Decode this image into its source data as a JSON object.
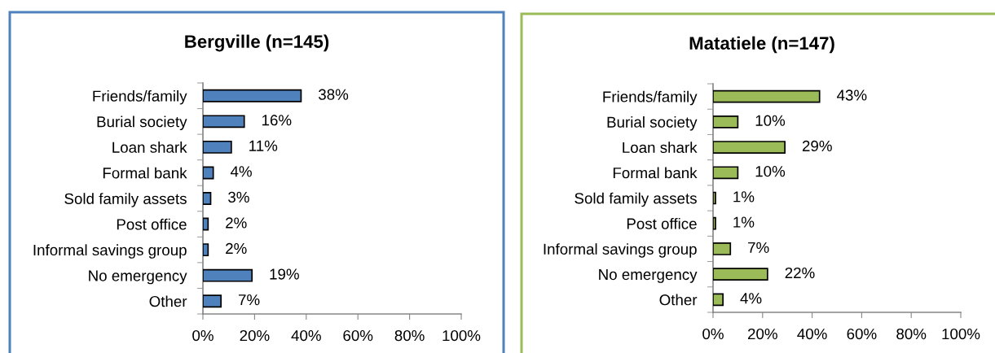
{
  "chart_data": [
    {
      "type": "bar",
      "orientation": "horizontal",
      "title": "Bergville (n=145)",
      "categories": [
        "Friends/family",
        "Burial society",
        "Loan shark",
        "Formal bank",
        "Sold family assets",
        "Post office",
        "Informal savings group",
        "No emergency",
        "Other"
      ],
      "values": [
        38,
        16,
        11,
        4,
        3,
        2,
        2,
        19,
        7
      ],
      "value_labels": [
        "38%",
        "16%",
        "11%",
        "4%",
        "3%",
        "2%",
        "2%",
        "19%",
        "7%"
      ],
      "color": "#4f81bd",
      "xlim": [
        0,
        100
      ],
      "xticks": [
        {
          "value": 0,
          "label": "0%"
        },
        {
          "value": 20,
          "label": "20%"
        },
        {
          "value": 40,
          "label": "40%"
        },
        {
          "value": 60,
          "label": "60%"
        },
        {
          "value": 80,
          "label": "80%"
        },
        {
          "value": 100,
          "label": "100%"
        }
      ],
      "grid": false
    },
    {
      "type": "bar",
      "orientation": "horizontal",
      "title": "Matatiele (n=147)",
      "categories": [
        "Friends/family",
        "Burial society",
        "Loan shark",
        "Formal bank",
        "Sold family assets",
        "Post office",
        "Informal savings group",
        "No emergency",
        "Other"
      ],
      "values": [
        43,
        10,
        29,
        10,
        1,
        1,
        7,
        22,
        4
      ],
      "value_labels": [
        "43%",
        "10%",
        "29%",
        "10%",
        "1%",
        "1%",
        "7%",
        "22%",
        "4%"
      ],
      "color": "#9bbb59",
      "xlim": [
        0,
        100
      ],
      "xticks": [
        {
          "value": 0,
          "label": "0%"
        },
        {
          "value": 20,
          "label": "20%"
        },
        {
          "value": 40,
          "label": "40%"
        },
        {
          "value": 60,
          "label": "60%"
        },
        {
          "value": 80,
          "label": "80%"
        },
        {
          "value": 100,
          "label": "100%"
        }
      ],
      "grid": false
    }
  ]
}
